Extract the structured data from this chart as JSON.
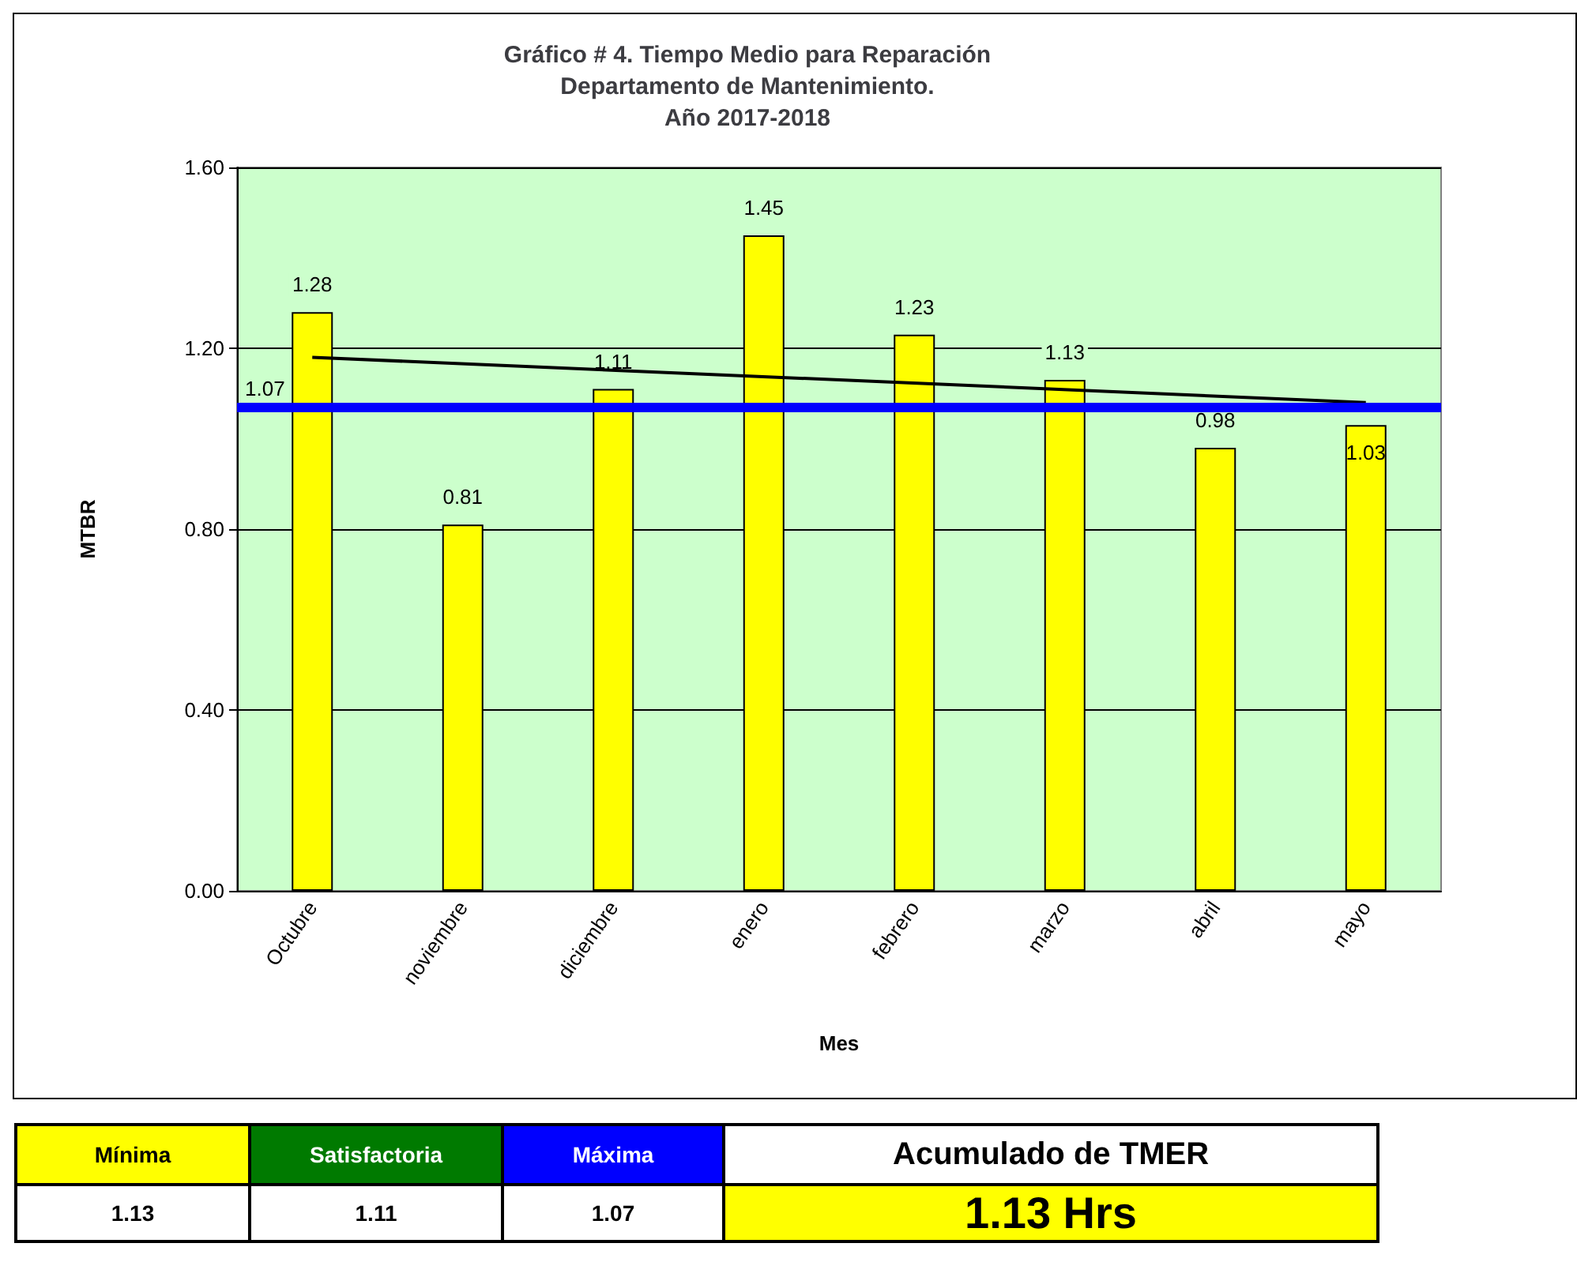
{
  "chart_data": [
    {
      "type": "bar",
      "title": "Gráfico # 4. Tiempo Medio para Reparación\nDepartamento de Mantenimiento.\nAño 2017-2018",
      "xlabel": "Mes",
      "ylabel": "MTBR",
      "categories": [
        "Octubre",
        "noviembre",
        "diciembre",
        "enero",
        "febrero",
        "marzo",
        "abril",
        "mayo"
      ],
      "series": [
        {
          "type": "bar",
          "color": "#ffff00",
          "values": [
            1.28,
            0.81,
            1.11,
            1.45,
            1.23,
            1.13,
            0.98,
            1.03
          ],
          "value_labels": [
            "1.28",
            "0.81",
            "1.11",
            "1.45",
            "1.23",
            "1.13",
            "0.98",
            "1.03"
          ]
        },
        {
          "type": "line",
          "color": "#000000",
          "x": [
            "Octubre",
            "mayo"
          ],
          "values": [
            1.18,
            1.08
          ]
        }
      ],
      "ref_lines": [
        {
          "axis": "y",
          "value": 1.07,
          "label": "1.07",
          "color": "#0000ff"
        }
      ],
      "ylim": [
        0,
        1.6
      ],
      "yticks": [
        {
          "value": 0,
          "label": "0.00"
        },
        {
          "value": 0.4,
          "label": "0.40"
        },
        {
          "value": 0.8,
          "label": "0.80"
        },
        {
          "value": 1.2,
          "label": "1.20"
        },
        {
          "value": 1.6,
          "label": "1.60"
        }
      ],
      "grid": "y"
    },
    {
      "type": "other",
      "annotations": [
        "Mínima",
        "Satisfactoria",
        "Máxima",
        "Acumulado de TMER",
        "1.13",
        "1.11",
        "1.07",
        "1.13 Hrs"
      ]
    }
  ]
}
